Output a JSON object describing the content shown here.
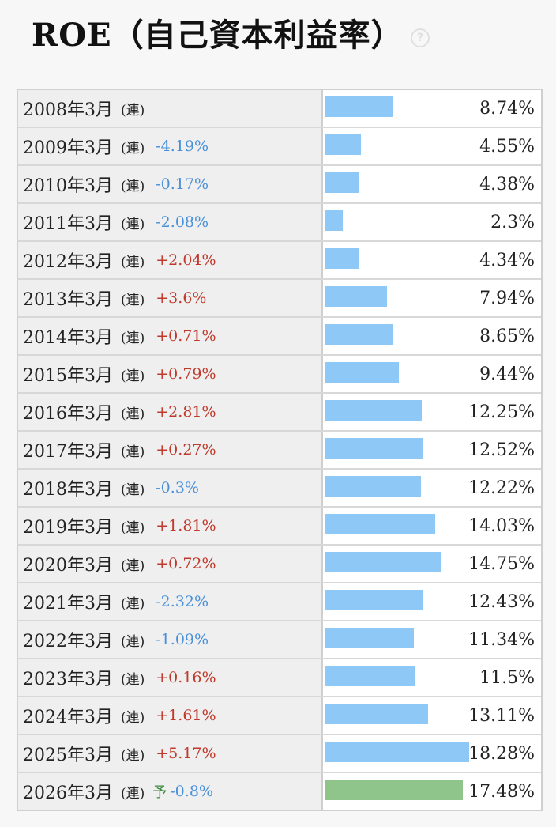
{
  "title": "ROE（自己資本利益率）",
  "help_icon": "question-circle-icon",
  "colors": {
    "actual_bar": "#8ec8f7",
    "forecast_bar": "#8fc58a",
    "up": "#c0392b",
    "down": "#4a90d9",
    "forecast_mark": "#3a8a3a"
  },
  "chart_data": {
    "type": "bar",
    "orientation": "horizontal",
    "title": "ROE（自己資本利益率）",
    "value_unit": "%",
    "xlim": [
      0,
      25
    ],
    "rows": [
      {
        "period": "2008年3月",
        "kind": "(連)",
        "estimate": "",
        "change": "",
        "value": 8.74,
        "value_label": "8.74%"
      },
      {
        "period": "2009年3月",
        "kind": "(連)",
        "estimate": "",
        "change": "-4.19%",
        "value": 4.55,
        "value_label": "4.55%"
      },
      {
        "period": "2010年3月",
        "kind": "(連)",
        "estimate": "",
        "change": "-0.17%",
        "value": 4.38,
        "value_label": "4.38%"
      },
      {
        "period": "2011年3月",
        "kind": "(連)",
        "estimate": "",
        "change": "-2.08%",
        "value": 2.3,
        "value_label": "2.3%"
      },
      {
        "period": "2012年3月",
        "kind": "(連)",
        "estimate": "",
        "change": "+2.04%",
        "value": 4.34,
        "value_label": "4.34%"
      },
      {
        "period": "2013年3月",
        "kind": "(連)",
        "estimate": "",
        "change": "+3.6%",
        "value": 7.94,
        "value_label": "7.94%"
      },
      {
        "period": "2014年3月",
        "kind": "(連)",
        "estimate": "",
        "change": "+0.71%",
        "value": 8.65,
        "value_label": "8.65%"
      },
      {
        "period": "2015年3月",
        "kind": "(連)",
        "estimate": "",
        "change": "+0.79%",
        "value": 9.44,
        "value_label": "9.44%"
      },
      {
        "period": "2016年3月",
        "kind": "(連)",
        "estimate": "",
        "change": "+2.81%",
        "value": 12.25,
        "value_label": "12.25%"
      },
      {
        "period": "2017年3月",
        "kind": "(連)",
        "estimate": "",
        "change": "+0.27%",
        "value": 12.52,
        "value_label": "12.52%"
      },
      {
        "period": "2018年3月",
        "kind": "(連)",
        "estimate": "",
        "change": "-0.3%",
        "value": 12.22,
        "value_label": "12.22%"
      },
      {
        "period": "2019年3月",
        "kind": "(連)",
        "estimate": "",
        "change": "+1.81%",
        "value": 14.03,
        "value_label": "14.03%"
      },
      {
        "period": "2020年3月",
        "kind": "(連)",
        "estimate": "",
        "change": "+0.72%",
        "value": 14.75,
        "value_label": "14.75%"
      },
      {
        "period": "2021年3月",
        "kind": "(連)",
        "estimate": "",
        "change": "-2.32%",
        "value": 12.43,
        "value_label": "12.43%"
      },
      {
        "period": "2022年3月",
        "kind": "(連)",
        "estimate": "",
        "change": "-1.09%",
        "value": 11.34,
        "value_label": "11.34%"
      },
      {
        "period": "2023年3月",
        "kind": "(連)",
        "estimate": "",
        "change": "+0.16%",
        "value": 11.5,
        "value_label": "11.5%"
      },
      {
        "period": "2024年3月",
        "kind": "(連)",
        "estimate": "",
        "change": "+1.61%",
        "value": 13.11,
        "value_label": "13.11%"
      },
      {
        "period": "2025年3月",
        "kind": "(連)",
        "estimate": "",
        "change": "+5.17%",
        "value": 18.28,
        "value_label": "18.28%"
      },
      {
        "period": "2026年3月",
        "kind": "(連)",
        "estimate": "予",
        "change": "-0.8%",
        "value": 17.48,
        "value_label": "17.48%"
      }
    ]
  }
}
